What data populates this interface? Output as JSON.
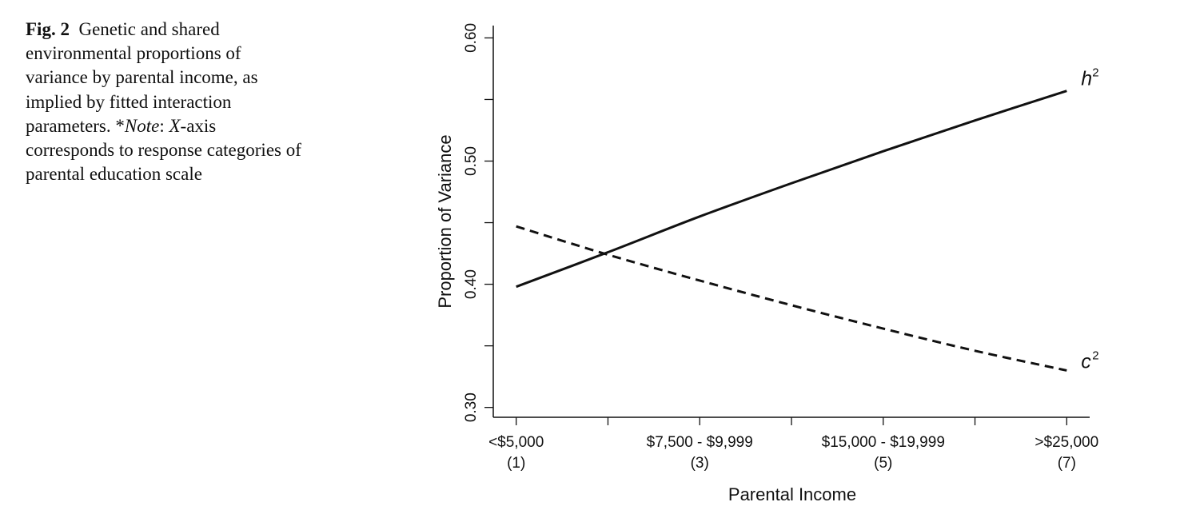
{
  "caption": {
    "fig_label": "Fig. 2",
    "text_main": "Genetic and shared environmental proportions of variance by parental income, as implied by fitted interaction parameters.",
    "note_prefix": "*",
    "note_label": "Note",
    "note_colon": ": ",
    "note_x": "X",
    "note_rest": "-axis corresponds to response categories of parental education scale"
  },
  "chart_data": {
    "type": "line",
    "title": "",
    "xlabel": "Parental Income",
    "ylabel": "Proportion of Variance",
    "xlim": [
      0.75,
      7.25
    ],
    "ylim": [
      0.292,
      0.61
    ],
    "x_ticks": [
      1,
      2,
      3,
      4,
      5,
      6,
      7
    ],
    "x_tick_labels": [
      {
        "x": 1,
        "line1": "<$5,000",
        "line2": "(1)"
      },
      {
        "x": 3,
        "line1": "$7,500 - $9,999",
        "line2": "(3)"
      },
      {
        "x": 5,
        "line1": "$15,000 - $19,999",
        "line2": "(5)"
      },
      {
        "x": 7,
        "line1": ">$25,000",
        "line2": "(7)"
      }
    ],
    "y_ticks": [
      0.3,
      0.35,
      0.4,
      0.45,
      0.5,
      0.55,
      0.6
    ],
    "y_tick_labels": [
      {
        "y": 0.3,
        "label": "0.30"
      },
      {
        "y": 0.4,
        "label": "0.40"
      },
      {
        "y": 0.5,
        "label": "0.50"
      },
      {
        "y": 0.6,
        "label": "0.60"
      }
    ],
    "grid": false,
    "legend": "none",
    "x": [
      1,
      2,
      3,
      4,
      5,
      6,
      7
    ],
    "series": [
      {
        "name": "h",
        "superscript": "2",
        "style": "solid",
        "color": "#111111",
        "values": [
          0.398,
          0.426,
          0.455,
          0.482,
          0.508,
          0.533,
          0.557
        ]
      },
      {
        "name": "c",
        "superscript": "2",
        "style": "dashed",
        "color": "#111111",
        "values": [
          0.447,
          0.424,
          0.403,
          0.383,
          0.364,
          0.346,
          0.33
        ]
      }
    ]
  }
}
